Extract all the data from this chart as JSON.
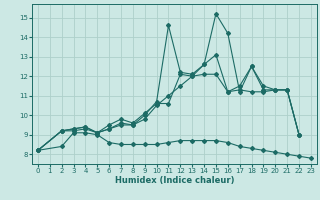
{
  "xlabel": "Humidex (Indice chaleur)",
  "xlim": [
    -0.5,
    23.5
  ],
  "ylim": [
    7.5,
    15.7
  ],
  "yticks": [
    8,
    9,
    10,
    11,
    12,
    13,
    14,
    15
  ],
  "xticks": [
    0,
    1,
    2,
    3,
    4,
    5,
    6,
    7,
    8,
    9,
    10,
    11,
    12,
    13,
    14,
    15,
    16,
    17,
    18,
    19,
    20,
    21,
    22,
    23
  ],
  "bg_color": "#cce8e4",
  "line_color": "#1c6b65",
  "grid_color": "#aed0ca",
  "lines": [
    {
      "x": [
        0,
        2,
        3,
        4,
        5,
        6,
        7,
        8,
        9,
        10,
        11,
        12,
        13,
        14,
        15,
        16,
        17,
        18,
        19,
        20,
        21,
        22,
        23
      ],
      "y": [
        8.2,
        8.4,
        9.1,
        9.1,
        9.0,
        8.6,
        8.5,
        8.5,
        8.5,
        8.5,
        8.6,
        8.7,
        8.7,
        8.7,
        8.7,
        8.6,
        8.4,
        8.3,
        8.2,
        8.1,
        8.0,
        7.9,
        7.8
      ]
    },
    {
      "x": [
        0,
        2,
        3,
        4,
        5,
        6,
        7,
        8,
        9,
        10,
        11,
        12,
        13,
        14,
        15,
        16,
        17,
        18,
        19,
        20,
        21,
        22
      ],
      "y": [
        8.2,
        9.2,
        9.2,
        9.3,
        9.1,
        9.3,
        9.5,
        9.5,
        9.8,
        10.5,
        11.0,
        11.5,
        12.0,
        12.1,
        12.1,
        11.2,
        11.3,
        11.2,
        11.2,
        11.3,
        11.3,
        9.0
      ]
    },
    {
      "x": [
        0,
        2,
        3,
        4,
        5,
        6,
        7,
        8,
        9,
        10,
        11,
        12,
        13,
        14,
        15,
        16,
        17,
        18,
        19,
        20,
        21,
        22
      ],
      "y": [
        8.2,
        9.2,
        9.3,
        9.4,
        9.1,
        9.5,
        9.8,
        9.6,
        10.1,
        10.6,
        10.6,
        12.1,
        12.0,
        12.6,
        13.1,
        11.2,
        11.5,
        12.5,
        11.5,
        11.3,
        11.3,
        9.0
      ]
    },
    {
      "x": [
        0,
        2,
        3,
        4,
        5,
        6,
        7,
        8,
        9,
        10,
        11,
        12,
        13,
        14,
        15,
        16,
        17,
        18,
        19,
        20,
        21,
        22
      ],
      "y": [
        8.2,
        9.2,
        9.3,
        9.4,
        9.1,
        9.3,
        9.6,
        9.5,
        10.0,
        10.7,
        14.6,
        12.2,
        12.1,
        12.6,
        15.2,
        14.2,
        11.2,
        12.5,
        11.3,
        11.3,
        11.3,
        9.0
      ]
    }
  ]
}
